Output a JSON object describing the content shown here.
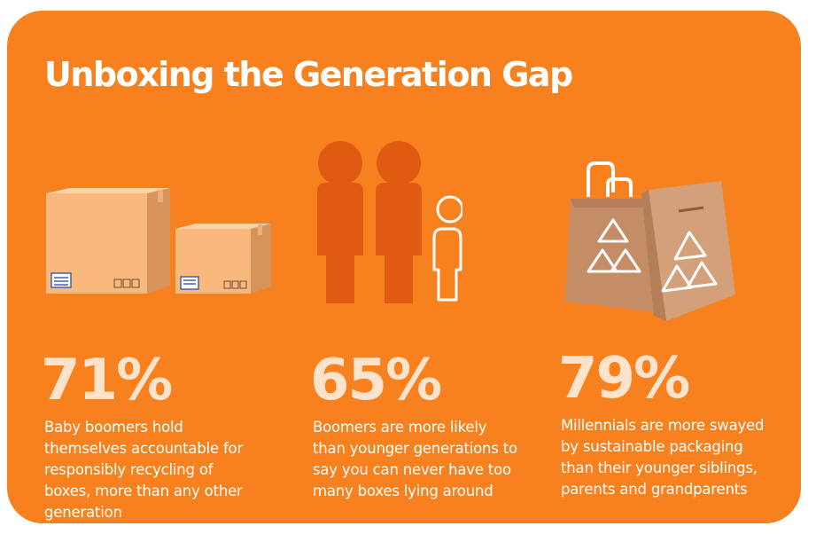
{
  "title": "Unboxing the Generation Gap",
  "colors": {
    "background": "#f7811f",
    "stat_text": "#fde3cc",
    "people_dark": "#e05a12",
    "box": "#f9b77a",
    "bag": "#c48d66"
  },
  "stats": [
    {
      "value": "71%",
      "description": "Baby boomers hold themselves accountable for responsibly recycling of boxes, more than any other generation",
      "icon": "cardboard-boxes-icon"
    },
    {
      "value": "65%",
      "description": "Boomers are more likely than younger generations to say you can never have too many boxes lying around",
      "icon": "people-icon"
    },
    {
      "value": "79%",
      "description": "Millennials are more swayed by sustainable packaging than their younger siblings, parents and grandparents",
      "icon": "recycled-bags-icon"
    }
  ]
}
